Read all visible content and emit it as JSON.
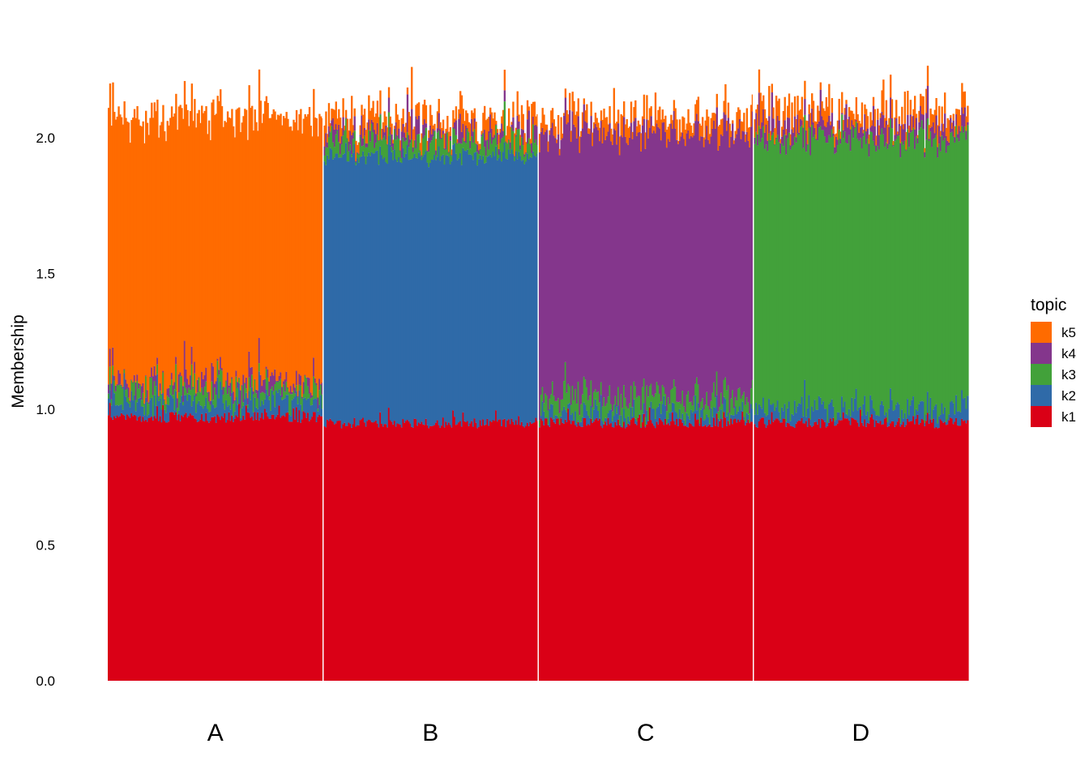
{
  "chart_data": {
    "type": "bar",
    "stacked": true,
    "ylabel": "Membership",
    "ylim": [
      0,
      2.35
    ],
    "yticks": [
      "0.0",
      "0.5",
      "1.0",
      "1.5",
      "2.0"
    ],
    "yticks_values": [
      0,
      0.5,
      1.0,
      1.5,
      2.0
    ],
    "grid": false,
    "legend": {
      "title": "topic",
      "placement": "right",
      "entries": [
        {
          "key": "k5",
          "color": "#ff6b00"
        },
        {
          "key": "k4",
          "color": "#84368c"
        },
        {
          "key": "k3",
          "color": "#42a13a"
        },
        {
          "key": "k2",
          "color": "#2f6aa8"
        },
        {
          "key": "k1",
          "color": "#da0016"
        }
      ]
    },
    "stack_order_bottom_to_top": [
      "k1",
      "k2",
      "k3",
      "k4",
      "k5"
    ],
    "categories": [
      "A",
      "B",
      "C",
      "D"
    ],
    "group_mean_membership": [
      {
        "group": "A",
        "k1": 0.97,
        "k2": 0.05,
        "k3": 0.05,
        "k4": 0.03,
        "k5": 0.97
      },
      {
        "group": "B",
        "k1": 0.95,
        "k2": 0.98,
        "k3": 0.05,
        "k4": 0.03,
        "k5": 0.05
      },
      {
        "group": "C",
        "k1": 0.95,
        "k2": 0.03,
        "k3": 0.06,
        "k4": 0.97,
        "k5": 0.05
      },
      {
        "group": "D",
        "k1": 0.95,
        "k2": 0.05,
        "k3": 0.99,
        "k4": 0.04,
        "k5": 0.05
      }
    ]
  }
}
